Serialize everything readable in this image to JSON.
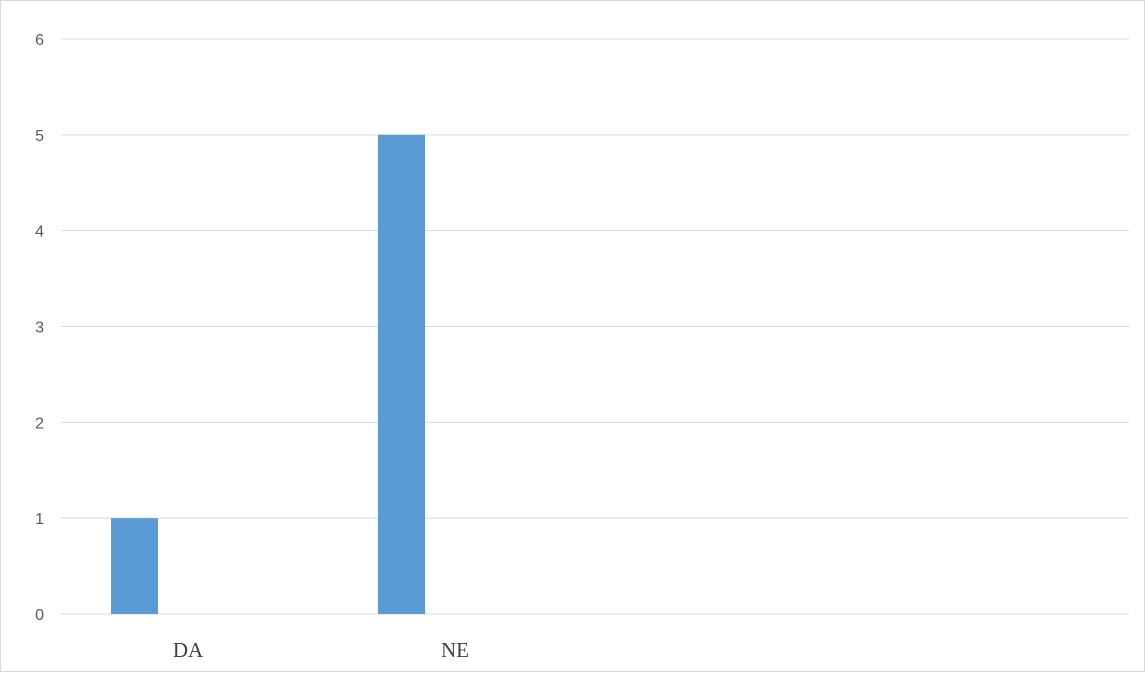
{
  "chart_data": {
    "type": "bar",
    "categories": [
      "DA",
      "NE",
      "",
      ""
    ],
    "values": [
      1,
      5,
      null,
      null
    ],
    "ylim": [
      0,
      6
    ],
    "yticks": [
      "0",
      "1",
      "2",
      "3",
      "4",
      "5",
      "6"
    ],
    "grid": true,
    "legend": "none",
    "title": "",
    "xlabel": "",
    "ylabel": ""
  },
  "colors": {
    "bar": "#5b9bd5",
    "grid": "#d9d9d9",
    "frame": "#d9d9d9"
  }
}
